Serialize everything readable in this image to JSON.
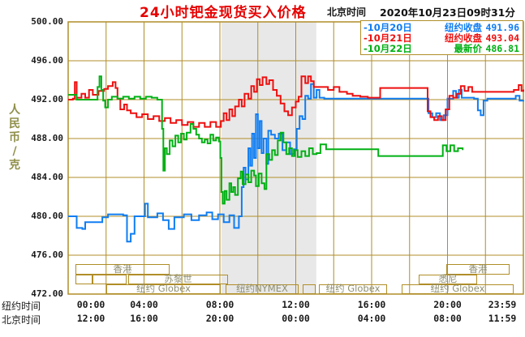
{
  "header": {
    "title": "24小时钯金现货买入价格",
    "timezone_label": "北京时间",
    "datetime": "2020年10月23日09时31分"
  },
  "colors": {
    "title_red": "#e60000",
    "grid": "#b08e28",
    "band": "#e8e8e8",
    "blue": "#0f7df2",
    "red": "#ee0f0f",
    "green": "#00b014",
    "unit_label": "#8f8f4a",
    "session_text": "#8f8f72"
  },
  "legend": [
    {
      "marker": "-",
      "date": "10月20日",
      "label": "纽约收盘",
      "value": "491.96",
      "color": "#0f7df2"
    },
    {
      "marker": "-",
      "date": "10月21日",
      "label": "纽约收盘",
      "value": "493.04",
      "color": "#ee0f0f"
    },
    {
      "marker": "-",
      "date": "10月22日",
      "label": "最新价",
      "value": "486.81",
      "color": "#00b014"
    }
  ],
  "y_axis": {
    "unit_chars": [
      "人",
      "民",
      "币",
      "/",
      "克"
    ],
    "ticks": [
      "500.00",
      "496.00",
      "492.00",
      "488.00",
      "484.00",
      "480.00",
      "476.00",
      "472.00"
    ]
  },
  "x_axis": {
    "ny_label": "纽约时间",
    "bj_label": "北京时间",
    "tick_hours": [
      0,
      4,
      8,
      12,
      16,
      20,
      23.983
    ],
    "ny_ticks": [
      "00:00",
      "04:00",
      "08:00",
      "12:00",
      "16:00",
      "20:00",
      "23:59"
    ],
    "bj_ticks": [
      "12:00",
      "16:00",
      "20:00",
      "00:00",
      "04:00",
      "08:00",
      "11:59"
    ]
  },
  "sessions": [
    {
      "row": 0,
      "start": 0.4,
      "end": 5.35,
      "label": "香港"
    },
    {
      "row": 0,
      "start": 19.95,
      "end": 23.3,
      "label": "香港"
    },
    {
      "row": 1,
      "start": 0.4,
      "end": 1.3,
      "label": ""
    },
    {
      "row": 1,
      "start": 1.3,
      "end": 3.1,
      "label": ""
    },
    {
      "row": 1,
      "start": 3.15,
      "end": 8.4,
      "label": "苏黎世"
    },
    {
      "row": 1,
      "start": 18.5,
      "end": 21.6,
      "label": "悉尼"
    },
    {
      "row": 2,
      "start": 2.0,
      "end": 8.05,
      "label": "纽约 Globex"
    },
    {
      "row": 2,
      "start": 8.3,
      "end": 12.15,
      "label": "纽约NYMEX"
    },
    {
      "row": 2,
      "start": 12.35,
      "end": 13.05,
      "label": ""
    },
    {
      "row": 2,
      "start": 13.2,
      "end": 16.8,
      "label": "纽约 Globex"
    },
    {
      "row": 2,
      "start": 17.6,
      "end": 23.5,
      "label": "纽约 Globex"
    }
  ],
  "chart_data": {
    "type": "line",
    "title": "24小时钯金现货买入价格",
    "x_unit": "hour of day, New York time (00:00–23:59)",
    "y_unit": "人民币/克",
    "xlim": [
      0,
      24
    ],
    "ylim": [
      472,
      500
    ],
    "x_grid_step_hours": 2,
    "y_grid_step": 4,
    "grid": true,
    "legend_position": "top-right",
    "shaded_region": {
      "start_hour": 8.08,
      "end_hour": 13.08,
      "meaning": "纽约NYMEX session"
    },
    "series": [
      {
        "name": "10月20日 纽约收盘 491.96",
        "color": "#0f7df2",
        "points": [
          [
            0,
            480.0
          ],
          [
            0.35,
            480.0
          ],
          [
            0.45,
            478.8
          ],
          [
            0.75,
            478.7
          ],
          [
            0.9,
            479.4
          ],
          [
            1.6,
            479.4
          ],
          [
            1.8,
            479.9
          ],
          [
            2.1,
            480.2
          ],
          [
            2.9,
            480.1
          ],
          [
            3.1,
            477.4
          ],
          [
            3.3,
            478.2
          ],
          [
            3.5,
            480.0
          ],
          [
            3.95,
            480.0
          ],
          [
            4.05,
            481.3
          ],
          [
            4.2,
            479.9
          ],
          [
            4.7,
            480.3
          ],
          [
            5.0,
            479.6
          ],
          [
            5.3,
            478.7
          ],
          [
            5.6,
            479.9
          ],
          [
            6.1,
            480.2
          ],
          [
            6.5,
            479.6
          ],
          [
            6.9,
            480.1
          ],
          [
            7.3,
            480.4
          ],
          [
            7.6,
            479.7
          ],
          [
            7.9,
            480.2
          ],
          [
            8.2,
            479.4
          ],
          [
            8.5,
            480.1
          ],
          [
            8.75,
            478.8
          ],
          [
            9.0,
            480.0
          ],
          [
            9.15,
            483.0
          ],
          [
            9.25,
            485.0
          ],
          [
            9.35,
            483.8
          ],
          [
            9.5,
            487.0
          ],
          [
            9.6,
            485.2
          ],
          [
            9.7,
            488.5
          ],
          [
            9.8,
            486.0
          ],
          [
            9.9,
            490.5
          ],
          [
            10.0,
            487.0
          ],
          [
            10.1,
            489.8
          ],
          [
            10.2,
            486.5
          ],
          [
            10.3,
            488.0
          ],
          [
            10.45,
            485.4
          ],
          [
            10.55,
            488.8
          ],
          [
            10.7,
            488.4
          ],
          [
            10.9,
            488.0
          ],
          [
            11.1,
            488.5
          ],
          [
            11.3,
            486.8
          ],
          [
            11.5,
            487.6
          ],
          [
            11.7,
            486.4
          ],
          [
            11.9,
            486.9
          ],
          [
            12.05,
            489.0
          ],
          [
            12.2,
            490.3
          ],
          [
            12.35,
            490.0
          ],
          [
            12.5,
            492.4
          ],
          [
            12.65,
            492.1
          ],
          [
            12.8,
            493.6
          ],
          [
            12.95,
            492.2
          ],
          [
            13.1,
            493.0
          ],
          [
            13.25,
            492.2
          ],
          [
            13.5,
            492.1
          ],
          [
            16.0,
            492.1
          ],
          [
            18.8,
            492.1
          ],
          [
            19.0,
            490.6
          ],
          [
            19.2,
            490.2
          ],
          [
            19.4,
            490.6
          ],
          [
            19.6,
            489.9
          ],
          [
            19.8,
            490.4
          ],
          [
            20.0,
            492.1
          ],
          [
            20.3,
            492.9
          ],
          [
            20.45,
            492.2
          ],
          [
            20.6,
            493.0
          ],
          [
            20.75,
            492.2
          ],
          [
            21.4,
            492.1
          ],
          [
            21.6,
            490.9
          ],
          [
            21.75,
            490.4
          ],
          [
            21.9,
            491.9
          ],
          [
            22.1,
            492.1
          ],
          [
            23.4,
            492.1
          ],
          [
            23.6,
            492.4
          ],
          [
            23.8,
            491.9
          ],
          [
            24,
            491.96
          ]
        ]
      },
      {
        "name": "10月21日 纽约收盘 493.04",
        "color": "#ee0f0f",
        "points": [
          [
            0,
            492.0
          ],
          [
            0.25,
            492.1
          ],
          [
            0.35,
            493.8
          ],
          [
            0.45,
            492.2
          ],
          [
            0.7,
            492.6
          ],
          [
            0.9,
            492.2
          ],
          [
            1.1,
            493.0
          ],
          [
            1.3,
            492.5
          ],
          [
            1.6,
            492.9
          ],
          [
            1.9,
            493.1
          ],
          [
            2.1,
            493.4
          ],
          [
            2.35,
            493.8
          ],
          [
            2.5,
            493.2
          ],
          [
            2.6,
            492.1
          ],
          [
            2.75,
            491.0
          ],
          [
            2.95,
            491.5
          ],
          [
            3.1,
            490.9
          ],
          [
            3.3,
            490.6
          ],
          [
            3.6,
            490.2
          ],
          [
            3.9,
            490.5
          ],
          [
            4.2,
            490.0
          ],
          [
            4.5,
            490.3
          ],
          [
            4.8,
            489.8
          ],
          [
            5.1,
            490.1
          ],
          [
            5.4,
            489.6
          ],
          [
            5.7,
            489.9
          ],
          [
            6.0,
            489.4
          ],
          [
            6.3,
            489.7
          ],
          [
            6.6,
            489.2
          ],
          [
            6.9,
            489.6
          ],
          [
            7.2,
            489.2
          ],
          [
            7.5,
            489.7
          ],
          [
            7.8,
            489.2
          ],
          [
            8.05,
            489.8
          ],
          [
            8.2,
            490.6
          ],
          [
            8.35,
            489.9
          ],
          [
            8.5,
            491.0
          ],
          [
            8.65,
            490.3
          ],
          [
            8.8,
            491.3
          ],
          [
            9.0,
            492.0
          ],
          [
            9.15,
            491.3
          ],
          [
            9.3,
            492.6
          ],
          [
            9.5,
            492.1
          ],
          [
            9.65,
            493.4
          ],
          [
            9.8,
            492.8
          ],
          [
            9.95,
            494.1
          ],
          [
            10.1,
            493.5
          ],
          [
            10.25,
            494.3
          ],
          [
            10.45,
            493.6
          ],
          [
            10.6,
            494.0
          ],
          [
            10.8,
            493.0
          ],
          [
            11.0,
            492.4
          ],
          [
            11.2,
            491.6
          ],
          [
            11.4,
            490.8
          ],
          [
            11.6,
            490.4
          ],
          [
            11.8,
            491.2
          ],
          [
            12.0,
            491.8
          ],
          [
            12.15,
            492.3
          ],
          [
            12.3,
            494.4
          ],
          [
            12.5,
            493.7
          ],
          [
            12.65,
            494.4
          ],
          [
            12.8,
            493.9
          ],
          [
            12.95,
            493.3
          ],
          [
            13.4,
            493.3
          ],
          [
            13.7,
            493.0
          ],
          [
            14.0,
            493.3
          ],
          [
            14.3,
            492.8
          ],
          [
            14.7,
            492.6
          ],
          [
            15.0,
            492.4
          ],
          [
            15.4,
            492.3
          ],
          [
            15.8,
            492.2
          ],
          [
            16.2,
            492.2
          ],
          [
            16.45,
            493.2
          ],
          [
            17.5,
            493.2
          ],
          [
            18.85,
            493.2
          ],
          [
            18.95,
            490.8
          ],
          [
            19.1,
            490.2
          ],
          [
            19.3,
            489.9
          ],
          [
            19.5,
            490.3
          ],
          [
            19.7,
            489.9
          ],
          [
            19.9,
            491.0
          ],
          [
            20.1,
            492.4
          ],
          [
            20.3,
            492.2
          ],
          [
            20.5,
            492.6
          ],
          [
            20.7,
            493.4
          ],
          [
            20.9,
            492.9
          ],
          [
            21.1,
            493.3
          ],
          [
            21.3,
            492.8
          ],
          [
            23.2,
            492.8
          ],
          [
            23.5,
            493.0
          ],
          [
            23.75,
            493.5
          ],
          [
            23.9,
            492.9
          ],
          [
            24,
            493.04
          ]
        ]
      },
      {
        "name": "10月22日 最新价 486.81",
        "color": "#00b014",
        "points": [
          [
            0,
            492.5
          ],
          [
            0.35,
            492.5
          ],
          [
            0.45,
            492.0
          ],
          [
            1.4,
            492.0
          ],
          [
            1.55,
            493.3
          ],
          [
            1.65,
            494.4
          ],
          [
            1.75,
            493.0
          ],
          [
            1.85,
            491.9
          ],
          [
            1.95,
            491.2
          ],
          [
            2.1,
            492.0
          ],
          [
            2.3,
            492.3
          ],
          [
            2.6,
            492.1
          ],
          [
            2.9,
            492.3
          ],
          [
            3.2,
            492.1
          ],
          [
            3.5,
            492.3
          ],
          [
            3.8,
            492.1
          ],
          [
            4.1,
            492.3
          ],
          [
            4.4,
            492.2
          ],
          [
            4.7,
            492.0
          ],
          [
            4.95,
            489.0
          ],
          [
            5.02,
            484.7
          ],
          [
            5.1,
            487.0
          ],
          [
            5.2,
            486.4
          ],
          [
            5.35,
            487.8
          ],
          [
            5.5,
            487.2
          ],
          [
            5.65,
            488.3
          ],
          [
            5.8,
            487.6
          ],
          [
            5.95,
            488.5
          ],
          [
            6.1,
            487.9
          ],
          [
            6.25,
            488.6
          ],
          [
            6.45,
            489.5
          ],
          [
            6.6,
            489.0
          ],
          [
            6.75,
            488.4
          ],
          [
            6.9,
            488.0
          ],
          [
            7.05,
            487.6
          ],
          [
            7.2,
            487.9
          ],
          [
            7.35,
            487.5
          ],
          [
            7.5,
            488.4
          ],
          [
            7.65,
            487.8
          ],
          [
            7.8,
            488.1
          ],
          [
            7.95,
            487.7
          ],
          [
            8.02,
            486.0
          ],
          [
            8.08,
            482.5
          ],
          [
            8.15,
            481.3
          ],
          [
            8.25,
            482.6
          ],
          [
            8.35,
            481.7
          ],
          [
            8.5,
            483.4
          ],
          [
            8.6,
            482.5
          ],
          [
            8.7,
            483.0
          ],
          [
            8.8,
            482.2
          ],
          [
            8.95,
            483.9
          ],
          [
            9.1,
            484.6
          ],
          [
            9.2,
            483.3
          ],
          [
            9.35,
            484.3
          ],
          [
            9.5,
            483.5
          ],
          [
            9.65,
            484.7
          ],
          [
            9.8,
            484.2
          ],
          [
            9.9,
            483.1
          ],
          [
            10.05,
            484.4
          ],
          [
            10.2,
            483.4
          ],
          [
            10.35,
            482.8
          ],
          [
            10.45,
            486.4
          ],
          [
            10.6,
            485.8
          ],
          [
            10.75,
            486.8
          ],
          [
            10.9,
            486.3
          ],
          [
            11.05,
            487.8
          ],
          [
            11.2,
            488.6
          ],
          [
            11.35,
            487.6
          ],
          [
            11.5,
            486.4
          ],
          [
            11.65,
            487.0
          ],
          [
            11.8,
            486.2
          ],
          [
            11.95,
            486.8
          ],
          [
            12.1,
            486.1
          ],
          [
            12.3,
            486.7
          ],
          [
            12.5,
            486.2
          ],
          [
            12.7,
            487.0
          ],
          [
            12.9,
            486.4
          ],
          [
            13.1,
            486.5
          ],
          [
            13.3,
            487.4
          ],
          [
            13.6,
            486.9
          ],
          [
            16.2,
            486.9
          ],
          [
            16.35,
            486.2
          ],
          [
            19.6,
            486.2
          ],
          [
            19.75,
            487.3
          ],
          [
            19.95,
            486.7
          ],
          [
            20.15,
            487.3
          ],
          [
            20.35,
            486.7
          ],
          [
            20.55,
            487.0
          ],
          [
            20.8,
            486.81
          ]
        ]
      }
    ]
  }
}
